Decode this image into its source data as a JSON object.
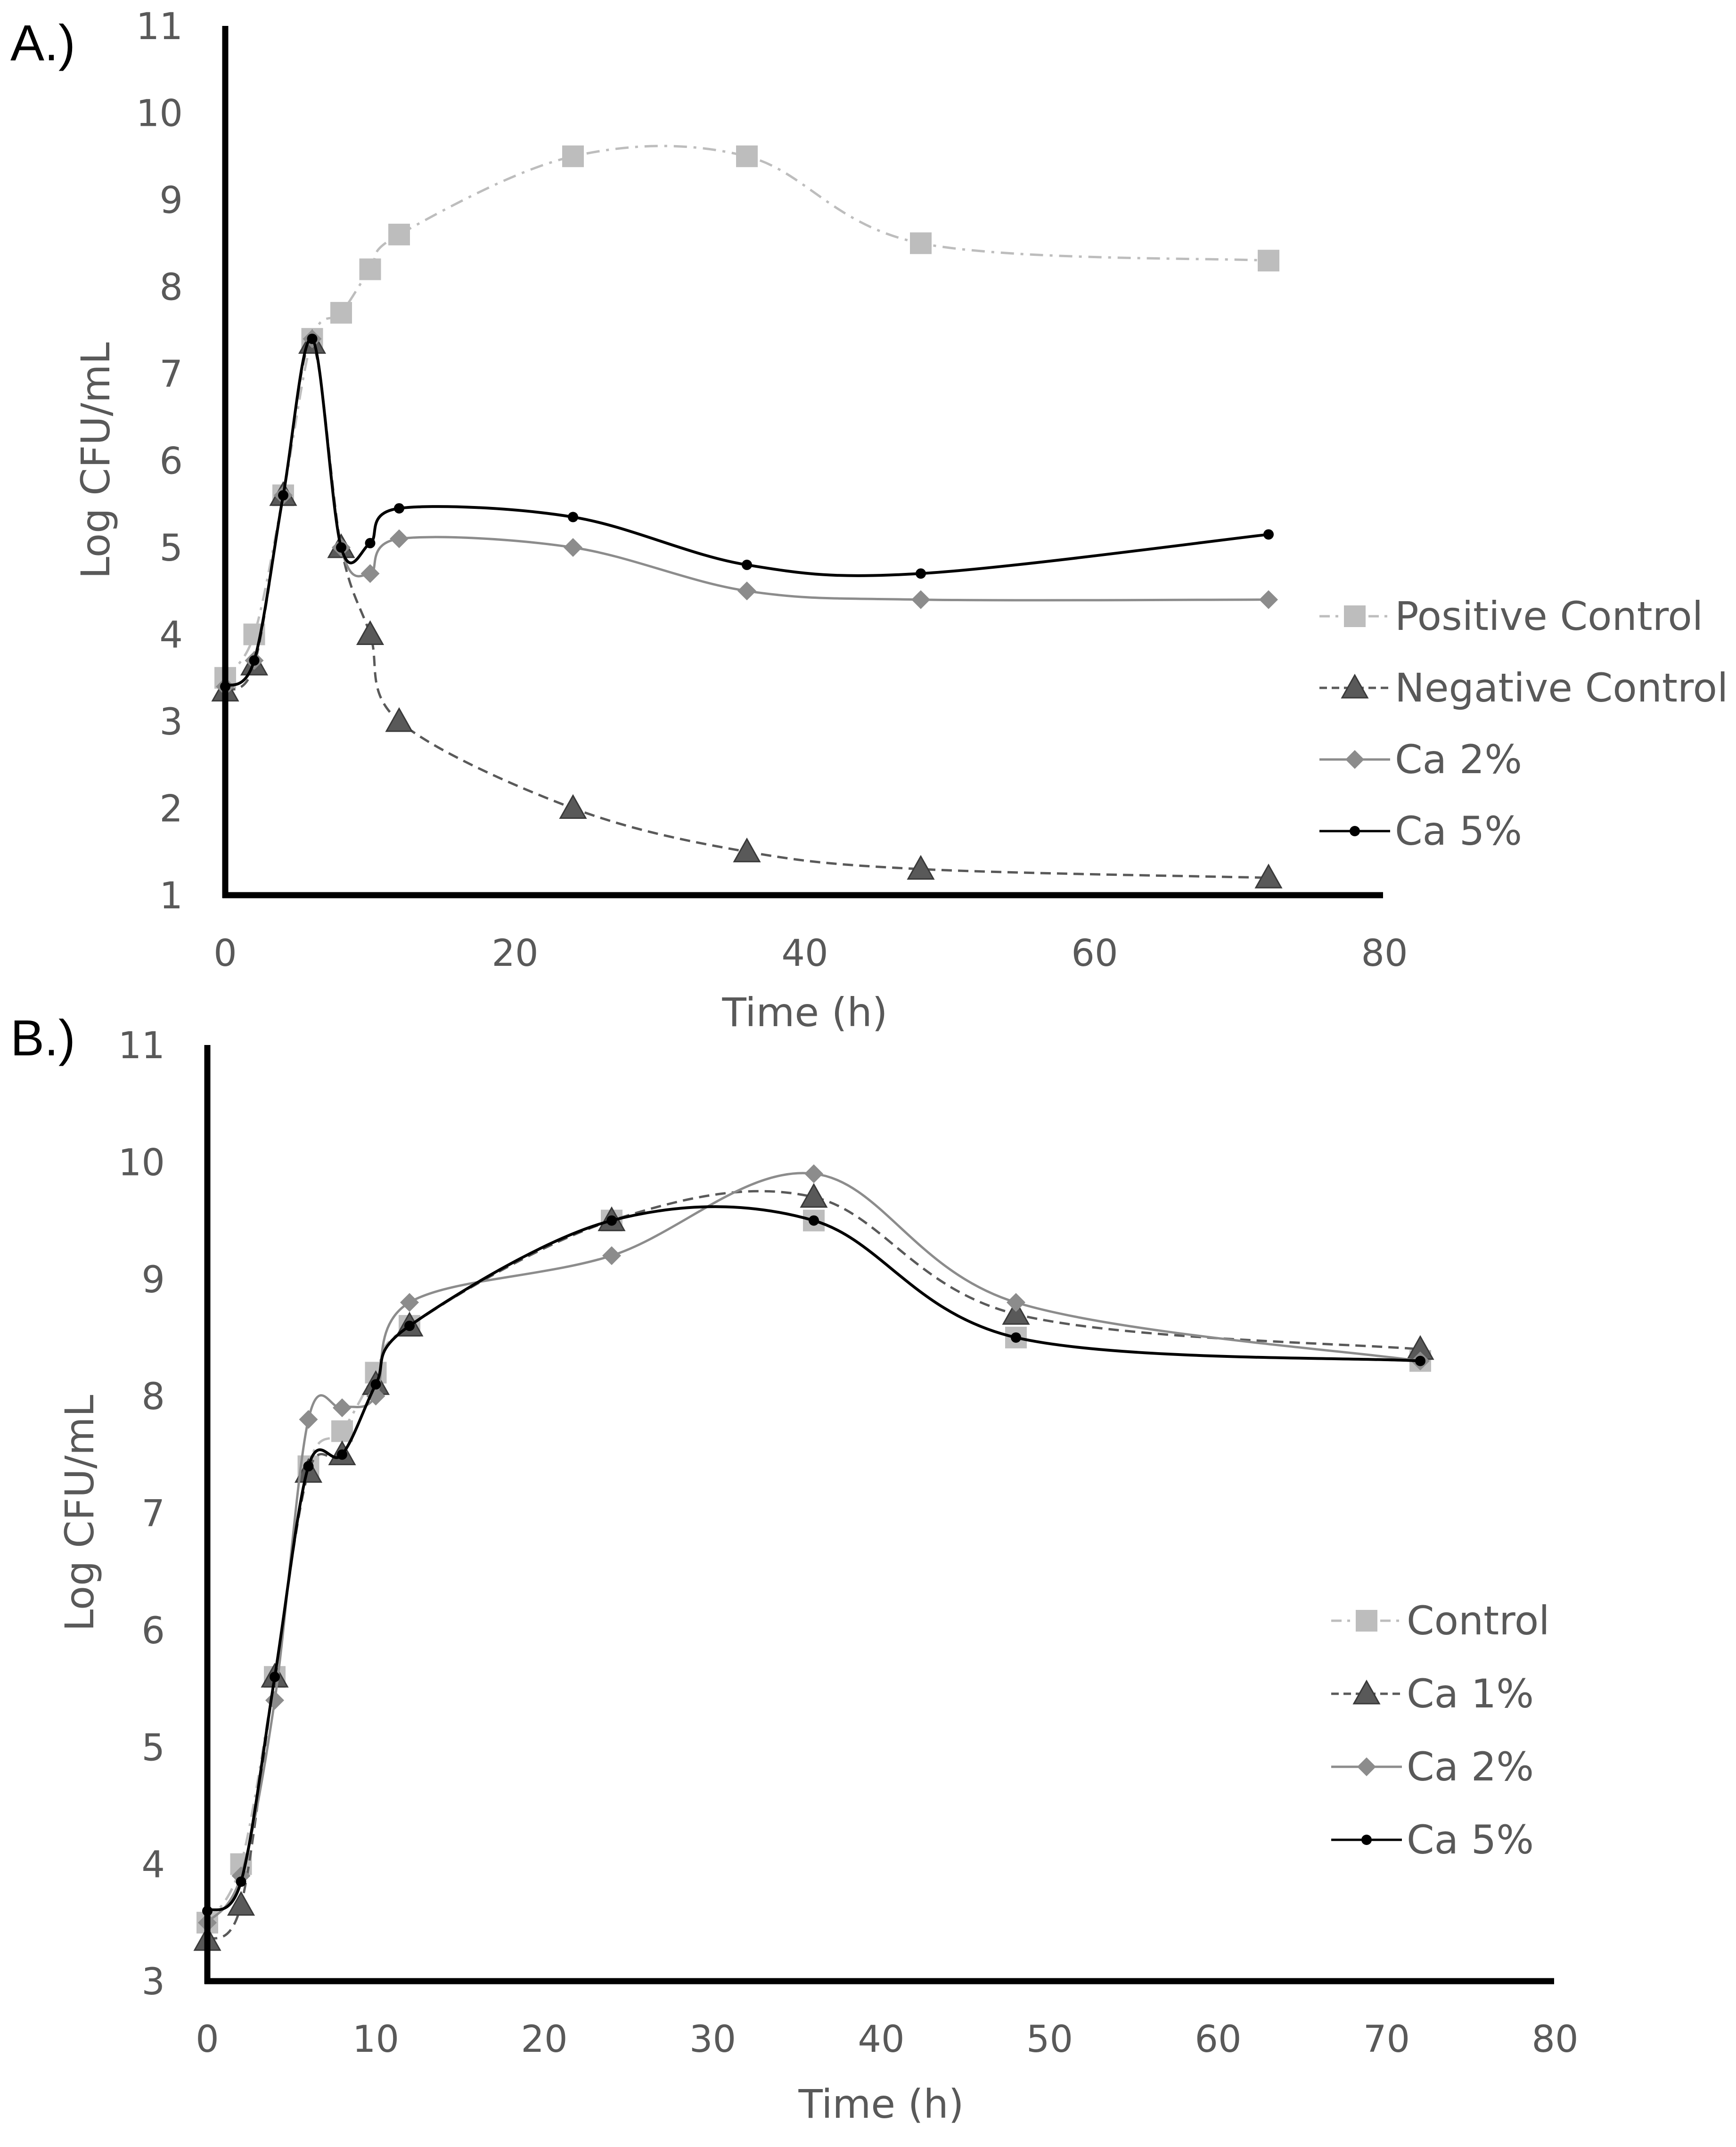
{
  "chart_data": [
    {
      "panel": "A.)",
      "type": "line",
      "xlabel": "Time (h)",
      "ylabel": "Log CFU/mL",
      "xlim": [
        0,
        80
      ],
      "ylim": [
        1,
        11
      ],
      "xticks": [
        "0",
        "20",
        "40",
        "60",
        "80"
      ],
      "yticks": [
        "1",
        "2",
        "3",
        "4",
        "5",
        "6",
        "7",
        "8",
        "9",
        "10",
        "11"
      ],
      "legend_position": "right",
      "series": [
        {
          "name": "Positive Control",
          "marker": "square",
          "color": "#BDBDBD",
          "dash": "dashdot",
          "x": [
            0,
            2,
            4,
            6,
            8,
            10,
            12,
            24,
            36,
            48,
            72
          ],
          "y": [
            3.5,
            4.0,
            5.6,
            7.4,
            7.7,
            8.2,
            8.6,
            9.5,
            9.5,
            8.5,
            8.3
          ]
        },
        {
          "name": "Negative Control",
          "marker": "triangle",
          "color": "#595959",
          "dash": "dashed",
          "x": [
            0,
            2,
            4,
            6,
            8,
            10,
            12,
            24,
            36,
            48,
            72
          ],
          "y": [
            3.35,
            3.65,
            5.6,
            7.35,
            5.0,
            4.0,
            3.0,
            2.0,
            1.5,
            1.3,
            1.2
          ]
        },
        {
          "name": "Ca 2%",
          "marker": "diamond",
          "color": "#8C8C8C",
          "dash": "solid",
          "x": [
            0,
            2,
            4,
            6,
            8,
            10,
            12,
            24,
            36,
            48,
            72
          ],
          "y": [
            3.4,
            3.7,
            5.6,
            7.4,
            5.0,
            4.7,
            5.1,
            5.0,
            4.5,
            4.4,
            4.4
          ]
        },
        {
          "name": "Ca 5%",
          "marker": "circle",
          "color": "#000000",
          "dash": "solid",
          "x": [
            0,
            2,
            4,
            6,
            8,
            10,
            12,
            24,
            36,
            48,
            72
          ],
          "y": [
            3.4,
            3.7,
            5.6,
            7.4,
            5.0,
            5.05,
            5.45,
            5.35,
            4.8,
            4.7,
            5.15
          ]
        }
      ]
    },
    {
      "panel": "B.)",
      "type": "line",
      "xlabel": "Time (h)",
      "ylabel": "Log CFU/mL",
      "xlim": [
        0,
        80
      ],
      "ylim": [
        3,
        11
      ],
      "xticks": [
        "0",
        "10",
        "20",
        "30",
        "40",
        "50",
        "60",
        "70",
        "80"
      ],
      "yticks": [
        "3",
        "4",
        "5",
        "6",
        "7",
        "8",
        "9",
        "10",
        "11"
      ],
      "legend_position": "right",
      "series": [
        {
          "name": "Control",
          "marker": "square",
          "color": "#BDBDBD",
          "dash": "dashdot",
          "x": [
            0,
            2,
            4,
            6,
            8,
            10,
            12,
            24,
            36,
            48,
            72
          ],
          "y": [
            3.5,
            4.0,
            5.6,
            7.4,
            7.7,
            8.2,
            8.6,
            9.5,
            9.5,
            8.5,
            8.3
          ]
        },
        {
          "name": "Ca 1%",
          "marker": "triangle",
          "color": "#595959",
          "dash": "dashed",
          "x": [
            0,
            2,
            4,
            6,
            8,
            10,
            12,
            24,
            36,
            48,
            72
          ],
          "y": [
            3.35,
            3.65,
            5.6,
            7.35,
            7.5,
            8.1,
            8.6,
            9.5,
            9.7,
            8.7,
            8.4
          ]
        },
        {
          "name": "Ca 2%",
          "marker": "diamond",
          "color": "#8C8C8C",
          "dash": "solid",
          "x": [
            0,
            2,
            4,
            6,
            8,
            10,
            12,
            24,
            36,
            48,
            72
          ],
          "y": [
            3.5,
            3.9,
            5.4,
            7.8,
            7.9,
            8.0,
            8.8,
            9.2,
            9.9,
            8.8,
            8.3
          ]
        },
        {
          "name": "Ca 5%",
          "marker": "circle",
          "color": "#000000",
          "dash": "solid",
          "x": [
            0,
            2,
            4,
            6,
            8,
            10,
            12,
            24,
            36,
            48,
            72
          ],
          "y": [
            3.6,
            3.85,
            5.6,
            7.4,
            7.5,
            8.1,
            8.6,
            9.5,
            9.5,
            8.5,
            8.3
          ]
        }
      ]
    }
  ]
}
